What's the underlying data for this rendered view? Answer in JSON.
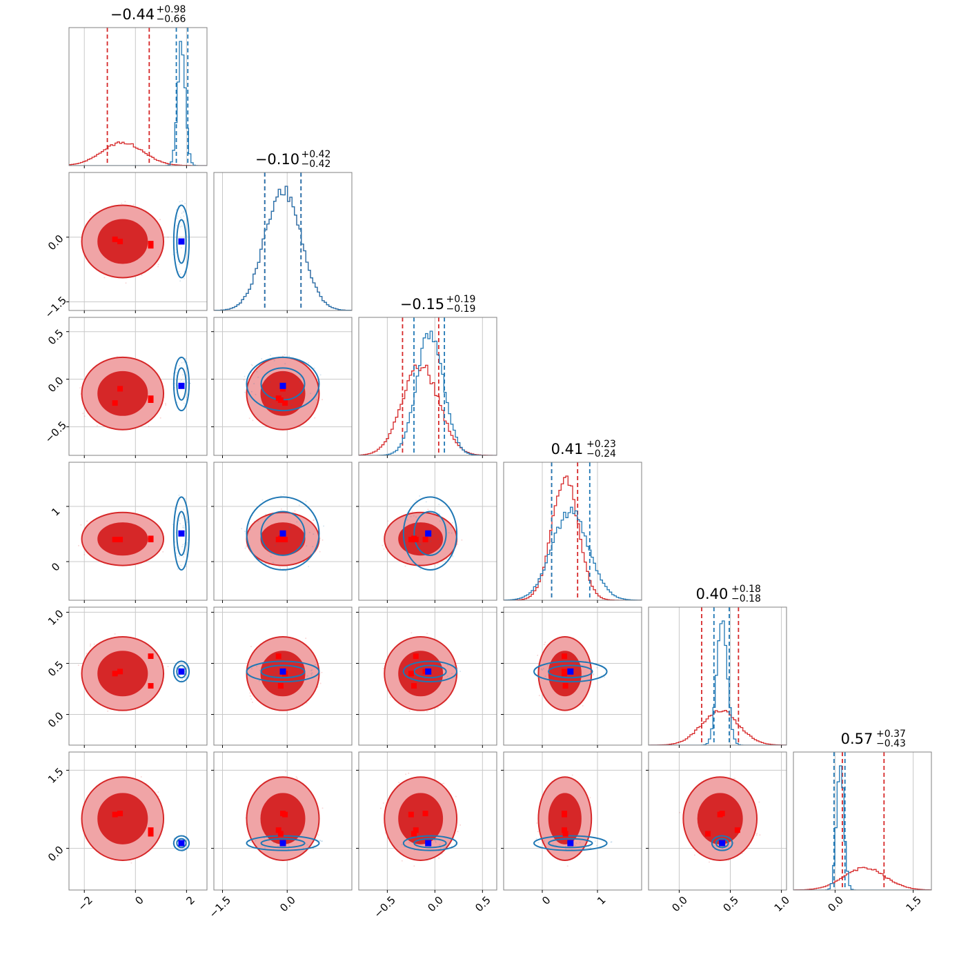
{
  "colors": {
    "red": "#d62728",
    "red_light": "#f0a4a6",
    "red_mid": "#e06a6c",
    "blue": "#1f77b4",
    "truth_red": "#ff0000",
    "truth_blue": "#0000ff"
  },
  "chart_data": {
    "type": "corner",
    "grid": true,
    "n_params": 6,
    "titles": [
      {
        "main": "−0.44",
        "sup": "+0.98",
        "sub": "−0.66"
      },
      {
        "main": "−0.10",
        "sup": "+0.42",
        "sub": "−0.42"
      },
      {
        "main": "−0.15",
        "sup": "+0.19",
        "sub": "−0.19"
      },
      {
        "main": "0.41",
        "sup": "+0.23",
        "sub": "−0.24"
      },
      {
        "main": "0.40",
        "sup": "+0.18",
        "sub": "−0.18"
      },
      {
        "main": "0.57",
        "sup": "+0.37",
        "sub": "−0.43"
      }
    ],
    "ranges": [
      [
        -2.6,
        2.8
      ],
      [
        -1.7,
        1.5
      ],
      [
        -0.8,
        0.65
      ],
      [
        -0.7,
        1.8
      ],
      [
        -0.3,
        1.05
      ],
      [
        -0.8,
        1.85
      ]
    ],
    "ticks": [
      {
        "values": [
          -2,
          0,
          2
        ],
        "labels": [
          "−2",
          "0",
          "2"
        ]
      },
      {
        "values": [
          -1.5,
          0
        ],
        "labels": [
          "−1.5",
          "0.0"
        ]
      },
      {
        "values": [
          -0.5,
          0,
          0.5
        ],
        "labels": [
          "−0.5",
          "0.0",
          "0.5"
        ]
      },
      {
        "values": [
          0,
          1
        ],
        "labels": [
          "0",
          "1"
        ]
      },
      {
        "values": [
          0,
          0.5,
          1
        ],
        "labels": [
          "0.0",
          "0.5",
          "1.0"
        ]
      },
      {
        "values": [
          0,
          1.5
        ],
        "labels": [
          "0.0",
          "1.5"
        ]
      }
    ],
    "series": [
      {
        "color": "#d62728",
        "mean": [
          -0.5,
          -0.1,
          -0.15,
          0.41,
          0.4,
          0.57
        ],
        "sd": [
          0.8,
          0.42,
          0.19,
          0.24,
          0.18,
          0.4
        ],
        "quantiles": [
          [
            -1.1,
            0.54
          ],
          [
            -0.52,
            0.32
          ],
          [
            -0.34,
            0.04
          ],
          [
            0.17,
            0.64
          ],
          [
            0.22,
            0.58
          ],
          [
            0.14,
            0.94
          ]
        ],
        "filled": true
      },
      {
        "color": "#1f77b4",
        "mean": [
          1.8,
          -0.1,
          -0.05,
          0.51,
          0.42,
          0.1
        ],
        "sd": [
          0.15,
          0.42,
          0.14,
          0.33,
          0.05,
          0.07
        ],
        "quantiles": [
          [
            1.6,
            2.05
          ],
          [
            -0.52,
            0.32
          ],
          [
            -0.22,
            0.1
          ],
          [
            0.17,
            0.86
          ],
          [
            0.34,
            0.49
          ],
          [
            -0.02,
            0.19
          ]
        ],
        "filled": false
      }
    ],
    "truth_markers": {
      "red": [
        [
          -0.8,
          -0.05,
          -0.25,
          0.4,
          0.4,
          0.65
        ],
        [
          -0.6,
          -0.1,
          -0.1,
          0.4,
          0.42,
          0.67
        ],
        [
          0.6,
          -0.15,
          -0.22,
          0.42,
          0.28,
          0.28
        ],
        [
          0.6,
          -0.2,
          -0.2,
          0.4,
          0.57,
          0.35
        ]
      ],
      "blue": [
        [
          1.8,
          -0.1,
          -0.07,
          0.51,
          0.42,
          0.1
        ]
      ]
    }
  }
}
